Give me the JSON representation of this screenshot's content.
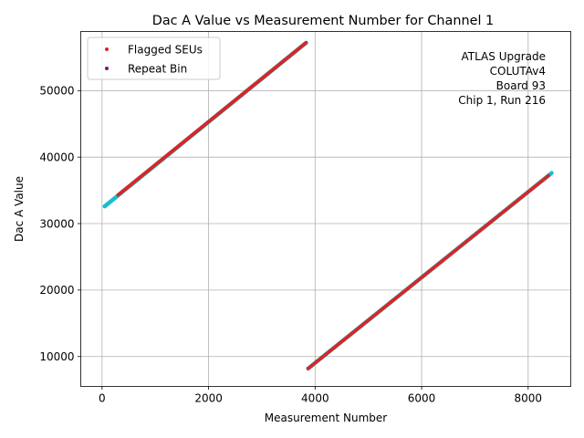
{
  "chart_data": {
    "type": "scatter",
    "title": "Dac A Value vs Measurement Number for Channel 1",
    "xlabel": "Measurement Number",
    "ylabel": "Dac A Value",
    "xlim": [
      -400,
      8800
    ],
    "ylim": [
      5500,
      58900
    ],
    "xticks": [
      0,
      2000,
      4000,
      6000,
      8000
    ],
    "xtick_labels": [
      "0",
      "2000",
      "4000",
      "6000",
      "8000"
    ],
    "yticks": [
      10000,
      20000,
      30000,
      40000,
      50000
    ],
    "ytick_labels": [
      "10000",
      "20000",
      "30000",
      "40000",
      "50000"
    ],
    "grid": true,
    "legend": {
      "placement": "top-left",
      "entries": [
        {
          "label": "Flagged SEUs",
          "color": "#d62728"
        },
        {
          "label": "Repeat Bin",
          "color": "#7f0f7f"
        }
      ]
    },
    "annotation": [
      "ATLAS Upgrade",
      "COLUTAv4",
      "Board 93",
      "Chip 1, Run 216"
    ],
    "series": [
      {
        "color": "#17becf",
        "marker": "dot",
        "segments": [
          {
            "x": [
              50,
              3830
            ],
            "y": [
              32600,
              57200
            ]
          },
          {
            "x": [
              3870,
              8440
            ],
            "y": [
              8200,
              37600
            ]
          }
        ]
      },
      {
        "color": "#d62728",
        "marker": "dot",
        "segments": [
          {
            "x": [
              300,
              3830
            ],
            "y": [
              34300,
              57200
            ]
          },
          {
            "x": [
              3870,
              8380
            ],
            "y": [
              8200,
              37200
            ]
          }
        ]
      }
    ]
  }
}
